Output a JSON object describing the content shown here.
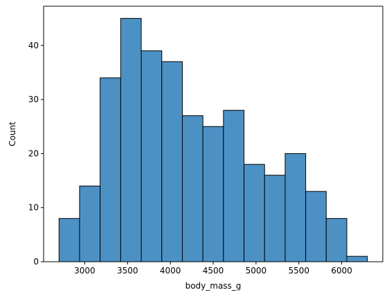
{
  "chart_data": {
    "type": "bar",
    "subtype": "histogram",
    "title": "",
    "xlabel": "body_mass_g",
    "ylabel": "Count",
    "bin_start": 2700,
    "bin_width": 240,
    "bins": [
      {
        "x0": 2700,
        "x1": 2940,
        "count": 8
      },
      {
        "x0": 2940,
        "x1": 3180,
        "count": 14
      },
      {
        "x0": 3180,
        "x1": 3420,
        "count": 34
      },
      {
        "x0": 3420,
        "x1": 3660,
        "count": 45
      },
      {
        "x0": 3660,
        "x1": 3900,
        "count": 39
      },
      {
        "x0": 3900,
        "x1": 4140,
        "count": 37
      },
      {
        "x0": 4140,
        "x1": 4380,
        "count": 27
      },
      {
        "x0": 4380,
        "x1": 4620,
        "count": 25
      },
      {
        "x0": 4620,
        "x1": 4860,
        "count": 28
      },
      {
        "x0": 4860,
        "x1": 5100,
        "count": 18
      },
      {
        "x0": 5100,
        "x1": 5340,
        "count": 16
      },
      {
        "x0": 5340,
        "x1": 5580,
        "count": 20
      },
      {
        "x0": 5580,
        "x1": 5820,
        "count": 13
      },
      {
        "x0": 5820,
        "x1": 6060,
        "count": 8
      },
      {
        "x0": 6060,
        "x1": 6300,
        "count": 1
      }
    ],
    "xlim": [
      2520,
      6480
    ],
    "ylim": [
      0,
      47.25
    ],
    "xticks": [
      3000,
      3500,
      4000,
      4500,
      5000,
      5500,
      6000
    ],
    "yticks": [
      0,
      10,
      20,
      30,
      40
    ],
    "grid": false,
    "legend": "none",
    "colors": {
      "bar_fill": "#4c91c4",
      "bar_edge": "#000000",
      "axes": "#000000"
    }
  }
}
